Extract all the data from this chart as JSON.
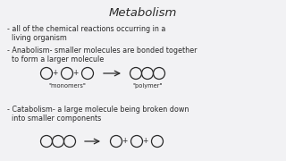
{
  "title": "Metabolism",
  "bg_color": "#f2f2f4",
  "text_color": "#2a2a2a",
  "title_color": "#2a2a2a",
  "line1": "- all of the chemical reactions occurring in a",
  "line2": "  living organism",
  "line3": "- Anabolism- smaller molecules are bonded together",
  "line4": "  to form a larger molecule",
  "line5": "- Catabolism- a large molecule being broken down",
  "line6": "  into smaller components",
  "monomer_label": "\"monomers\"",
  "polymer_label": "\"polymer\"",
  "font_size_title": 9.5,
  "font_size_body": 5.8,
  "font_size_label": 4.8,
  "font_size_plus": 5.5,
  "circle_color": "#2a2a2a",
  "circle_lw": 0.9
}
